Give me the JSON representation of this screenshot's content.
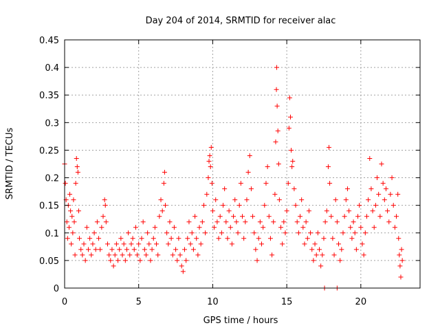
{
  "chart_data": {
    "type": "scatter",
    "title": "Day 204 of 2014, SRMTID for receiver alac",
    "xlabel": "GPS time / hours",
    "ylabel": "SRMTID / TECUs",
    "xlim": [
      0,
      24
    ],
    "ylim": [
      0,
      0.45
    ],
    "x_ticks": [
      0,
      5,
      10,
      15,
      20
    ],
    "x_tick_labels": [
      "0",
      "5",
      "10",
      "15",
      "20"
    ],
    "y_ticks": [
      0,
      0.05,
      0.1,
      0.15,
      0.2,
      0.25,
      0.3,
      0.35,
      0.4,
      0.45
    ],
    "y_tick_labels": [
      "0",
      "0.05",
      "0.1",
      "0.15",
      "0.2",
      "0.25",
      "0.3",
      "0.35",
      "0.4",
      "0.45"
    ],
    "grid": true,
    "marker": "+",
    "color": "#ff0000",
    "x_range_of_data": [
      0,
      22.8
    ],
    "series": [
      {
        "name": "SRMTID",
        "points": [
          [
            0.0,
            0.225
          ],
          [
            0.05,
            0.19
          ],
          [
            0.1,
            0.16
          ],
          [
            0.15,
            0.12
          ],
          [
            0.2,
            0.09
          ],
          [
            0.25,
            0.15
          ],
          [
            0.3,
            0.11
          ],
          [
            0.35,
            0.17
          ],
          [
            0.4,
            0.14
          ],
          [
            0.45,
            0.08
          ],
          [
            0.5,
            0.13
          ],
          [
            0.55,
            0.1
          ],
          [
            0.6,
            0.16
          ],
          [
            0.65,
            0.12
          ],
          [
            0.7,
            0.06
          ],
          [
            0.75,
            0.19
          ],
          [
            0.8,
            0.235
          ],
          [
            0.85,
            0.22
          ],
          [
            0.9,
            0.21
          ],
          [
            0.95,
            0.14
          ],
          [
            1.0,
            0.09
          ],
          [
            1.1,
            0.07
          ],
          [
            1.2,
            0.06
          ],
          [
            1.3,
            0.08
          ],
          [
            1.4,
            0.05
          ],
          [
            1.5,
            0.11
          ],
          [
            1.6,
            0.07
          ],
          [
            1.7,
            0.09
          ],
          [
            1.8,
            0.06
          ],
          [
            1.9,
            0.08
          ],
          [
            2.0,
            0.1
          ],
          [
            2.1,
            0.07
          ],
          [
            2.2,
            0.12
          ],
          [
            2.3,
            0.09
          ],
          [
            2.4,
            0.07
          ],
          [
            2.5,
            0.11
          ],
          [
            2.6,
            0.13
          ],
          [
            2.7,
            0.16
          ],
          [
            2.75,
            0.15
          ],
          [
            2.8,
            0.12
          ],
          [
            2.9,
            0.08
          ],
          [
            3.0,
            0.06
          ],
          [
            3.1,
            0.05
          ],
          [
            3.2,
            0.07
          ],
          [
            3.3,
            0.04
          ],
          [
            3.4,
            0.06
          ],
          [
            3.5,
            0.08
          ],
          [
            3.6,
            0.05
          ],
          [
            3.7,
            0.07
          ],
          [
            3.8,
            0.09
          ],
          [
            3.9,
            0.06
          ],
          [
            4.0,
            0.08
          ],
          [
            4.1,
            0.05
          ],
          [
            4.2,
            0.07
          ],
          [
            4.3,
            0.1
          ],
          [
            4.4,
            0.06
          ],
          [
            4.5,
            0.08
          ],
          [
            4.6,
            0.09
          ],
          [
            4.7,
            0.07
          ],
          [
            4.8,
            0.11
          ],
          [
            4.9,
            0.06
          ],
          [
            5.0,
            0.08
          ],
          [
            5.1,
            0.05
          ],
          [
            5.2,
            0.09
          ],
          [
            5.3,
            0.12
          ],
          [
            5.4,
            0.07
          ],
          [
            5.5,
            0.06
          ],
          [
            5.6,
            0.1
          ],
          [
            5.7,
            0.08
          ],
          [
            5.8,
            0.05
          ],
          [
            5.9,
            0.07
          ],
          [
            6.0,
            0.09
          ],
          [
            6.1,
            0.11
          ],
          [
            6.2,
            0.08
          ],
          [
            6.3,
            0.06
          ],
          [
            6.4,
            0.13
          ],
          [
            6.5,
            0.16
          ],
          [
            6.6,
            0.14
          ],
          [
            6.7,
            0.19
          ],
          [
            6.75,
            0.21
          ],
          [
            6.8,
            0.15
          ],
          [
            6.9,
            0.1
          ],
          [
            7.0,
            0.08
          ],
          [
            7.1,
            0.12
          ],
          [
            7.2,
            0.09
          ],
          [
            7.3,
            0.06
          ],
          [
            7.4,
            0.11
          ],
          [
            7.5,
            0.07
          ],
          [
            7.6,
            0.05
          ],
          [
            7.7,
            0.09
          ],
          [
            7.8,
            0.06
          ],
          [
            7.9,
            0.04
          ],
          [
            8.0,
            0.03
          ],
          [
            8.1,
            0.07
          ],
          [
            8.2,
            0.05
          ],
          [
            8.3,
            0.09
          ],
          [
            8.4,
            0.12
          ],
          [
            8.5,
            0.08
          ],
          [
            8.6,
            0.1
          ],
          [
            8.7,
            0.07
          ],
          [
            8.8,
            0.13
          ],
          [
            8.9,
            0.09
          ],
          [
            9.0,
            0.06
          ],
          [
            9.1,
            0.11
          ],
          [
            9.2,
            0.08
          ],
          [
            9.3,
            0.12
          ],
          [
            9.4,
            0.15
          ],
          [
            9.5,
            0.1
          ],
          [
            9.6,
            0.17
          ],
          [
            9.7,
            0.2
          ],
          [
            9.75,
            0.23
          ],
          [
            9.8,
            0.24
          ],
          [
            9.85,
            0.22
          ],
          [
            9.9,
            0.255
          ],
          [
            9.95,
            0.19
          ],
          [
            10.0,
            0.14
          ],
          [
            10.1,
            0.11
          ],
          [
            10.2,
            0.16
          ],
          [
            10.3,
            0.12
          ],
          [
            10.4,
            0.09
          ],
          [
            10.5,
            0.13
          ],
          [
            10.6,
            0.1
          ],
          [
            10.7,
            0.15
          ],
          [
            10.8,
            0.18
          ],
          [
            10.9,
            0.12
          ],
          [
            11.0,
            0.09
          ],
          [
            11.1,
            0.14
          ],
          [
            11.2,
            0.11
          ],
          [
            11.3,
            0.08
          ],
          [
            11.4,
            0.13
          ],
          [
            11.5,
            0.16
          ],
          [
            11.6,
            0.12
          ],
          [
            11.7,
            0.1
          ],
          [
            11.8,
            0.15
          ],
          [
            11.9,
            0.19
          ],
          [
            12.0,
            0.13
          ],
          [
            12.1,
            0.09
          ],
          [
            12.2,
            0.12
          ],
          [
            12.3,
            0.16
          ],
          [
            12.4,
            0.21
          ],
          [
            12.5,
            0.24
          ],
          [
            12.6,
            0.18
          ],
          [
            12.7,
            0.13
          ],
          [
            12.8,
            0.1
          ],
          [
            12.9,
            0.07
          ],
          [
            13.0,
            0.05
          ],
          [
            13.1,
            0.09
          ],
          [
            13.2,
            0.12
          ],
          [
            13.3,
            0.08
          ],
          [
            13.4,
            0.11
          ],
          [
            13.5,
            0.15
          ],
          [
            13.6,
            0.19
          ],
          [
            13.7,
            0.22
          ],
          [
            13.8,
            0.13
          ],
          [
            13.9,
            0.09
          ],
          [
            14.0,
            0.06
          ],
          [
            14.1,
            0.12
          ],
          [
            14.2,
            0.17
          ],
          [
            14.25,
            0.265
          ],
          [
            14.3,
            0.36
          ],
          [
            14.32,
            0.4
          ],
          [
            14.35,
            0.33
          ],
          [
            14.4,
            0.285
          ],
          [
            14.45,
            0.225
          ],
          [
            14.5,
            0.16
          ],
          [
            14.6,
            0.11
          ],
          [
            14.7,
            0.08
          ],
          [
            14.8,
            0.12
          ],
          [
            14.9,
            0.1
          ],
          [
            15.0,
            0.14
          ],
          [
            15.1,
            0.19
          ],
          [
            15.15,
            0.29
          ],
          [
            15.2,
            0.345
          ],
          [
            15.25,
            0.31
          ],
          [
            15.3,
            0.25
          ],
          [
            15.35,
            0.22
          ],
          [
            15.4,
            0.23
          ],
          [
            15.5,
            0.18
          ],
          [
            15.6,
            0.15
          ],
          [
            15.7,
            0.12
          ],
          [
            15.8,
            0.1
          ],
          [
            15.9,
            0.13
          ],
          [
            16.0,
            0.16
          ],
          [
            16.1,
            0.11
          ],
          [
            16.2,
            0.08
          ],
          [
            16.3,
            0.12
          ],
          [
            16.4,
            0.09
          ],
          [
            16.5,
            0.14
          ],
          [
            16.6,
            0.1
          ],
          [
            16.7,
            0.07
          ],
          [
            16.8,
            0.05
          ],
          [
            16.9,
            0.08
          ],
          [
            17.0,
            0.06
          ],
          [
            17.1,
            0.1
          ],
          [
            17.2,
            0.07
          ],
          [
            17.3,
            0.04
          ],
          [
            17.4,
            0.06
          ],
          [
            17.5,
            0.09
          ],
          [
            17.6,
            0.12
          ],
          [
            17.7,
            0.14
          ],
          [
            17.8,
            0.22
          ],
          [
            17.85,
            0.255
          ],
          [
            17.9,
            0.19
          ],
          [
            18.0,
            0.13
          ],
          [
            18.1,
            0.09
          ],
          [
            18.2,
            0.06
          ],
          [
            18.3,
            0.16
          ],
          [
            18.4,
            0.12
          ],
          [
            18.5,
            0.08
          ],
          [
            18.6,
            0.05
          ],
          [
            18.7,
            0.07
          ],
          [
            18.8,
            0.1
          ],
          [
            18.9,
            0.13
          ],
          [
            19.0,
            0.16
          ],
          [
            19.1,
            0.18
          ],
          [
            19.2,
            0.14
          ],
          [
            19.3,
            0.11
          ],
          [
            19.4,
            0.09
          ],
          [
            19.5,
            0.12
          ],
          [
            19.6,
            0.1
          ],
          [
            19.7,
            0.07
          ],
          [
            19.8,
            0.13
          ],
          [
            19.9,
            0.15
          ],
          [
            20.0,
            0.11
          ],
          [
            20.1,
            0.08
          ],
          [
            20.2,
            0.06
          ],
          [
            20.3,
            0.1
          ],
          [
            20.4,
            0.13
          ],
          [
            20.5,
            0.16
          ],
          [
            20.6,
            0.235
          ],
          [
            20.7,
            0.18
          ],
          [
            20.8,
            0.14
          ],
          [
            20.9,
            0.11
          ],
          [
            21.0,
            0.15
          ],
          [
            21.1,
            0.2
          ],
          [
            21.2,
            0.17
          ],
          [
            21.3,
            0.13
          ],
          [
            21.4,
            0.225
          ],
          [
            21.5,
            0.19
          ],
          [
            21.6,
            0.16
          ],
          [
            21.7,
            0.18
          ],
          [
            21.8,
            0.14
          ],
          [
            21.9,
            0.12
          ],
          [
            22.0,
            0.17
          ],
          [
            22.1,
            0.2
          ],
          [
            22.2,
            0.15
          ],
          [
            22.3,
            0.11
          ],
          [
            22.4,
            0.13
          ],
          [
            22.5,
            0.17
          ],
          [
            22.55,
            0.09
          ],
          [
            22.6,
            0.06
          ],
          [
            22.65,
            0.04
          ],
          [
            22.7,
            0.02
          ],
          [
            22.75,
            0.07
          ],
          [
            22.8,
            0.05
          ],
          [
            17.55,
            0.0
          ],
          [
            18.4,
            0.0
          ]
        ]
      }
    ]
  }
}
